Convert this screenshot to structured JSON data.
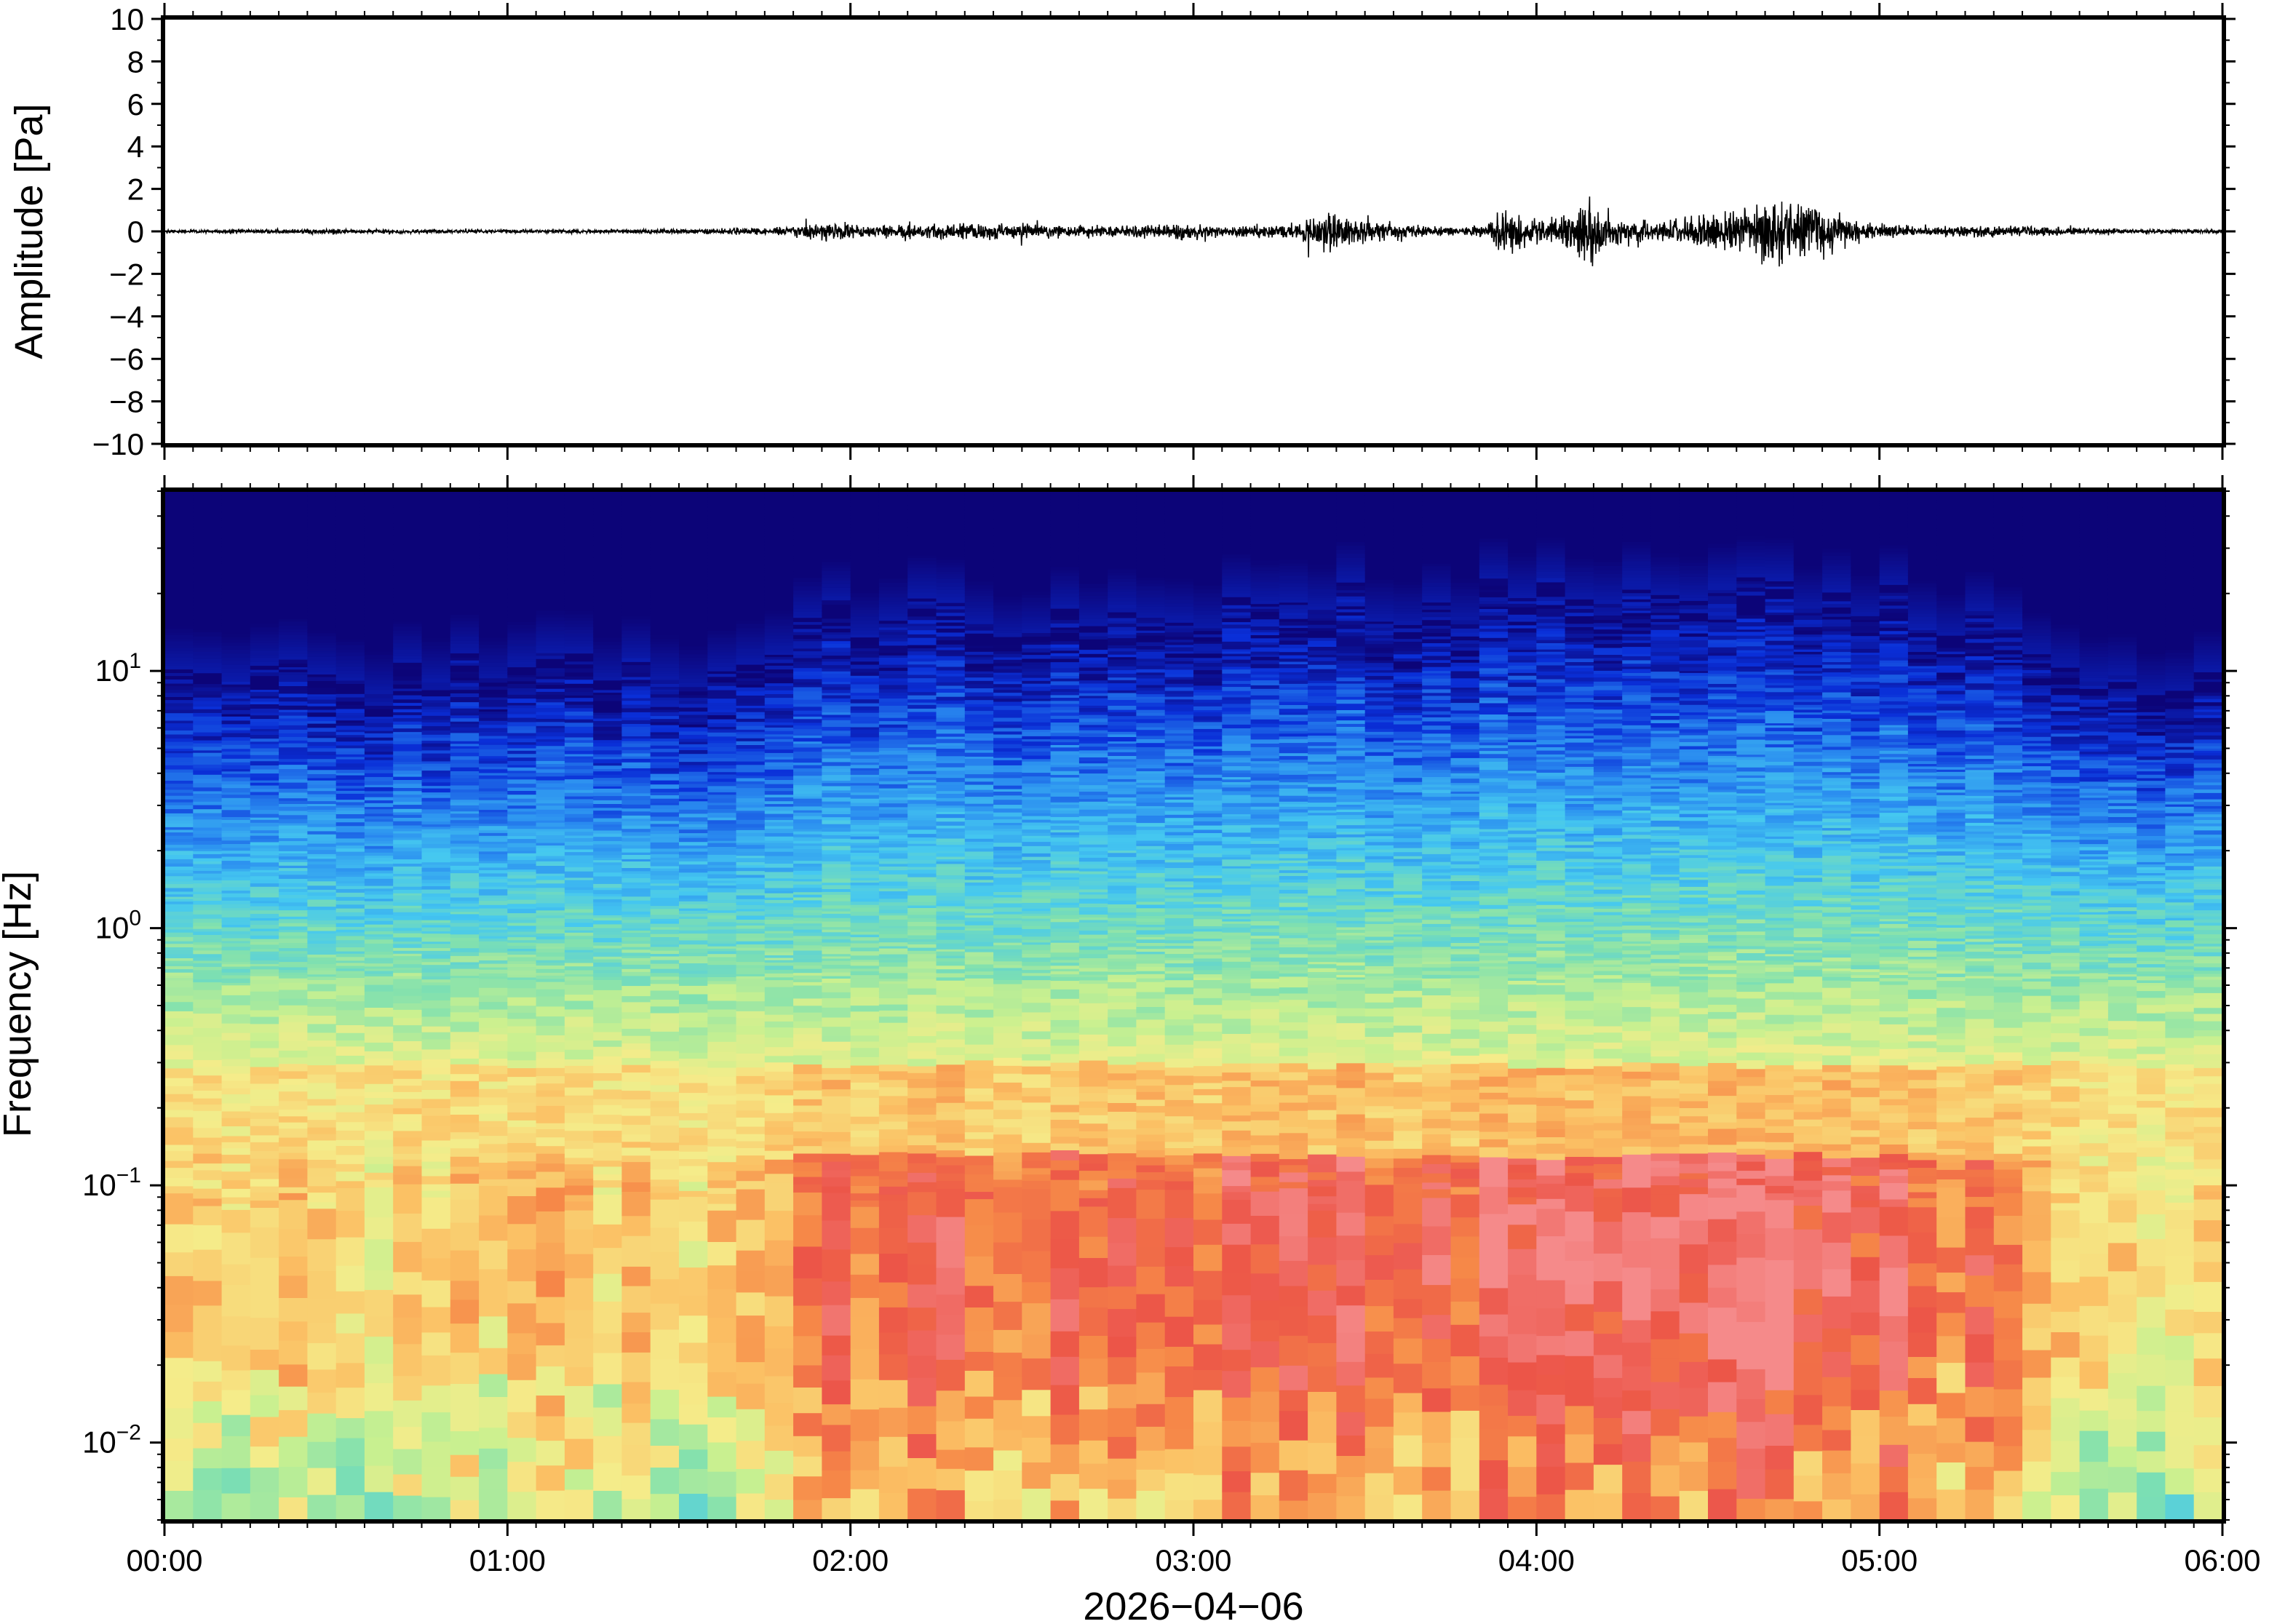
{
  "chart_data": [
    {
      "type": "line",
      "ylabel": "Amplitude [Pa]",
      "ylim": [
        -10,
        10
      ],
      "yticks": [
        10,
        8,
        6,
        4,
        2,
        0,
        -2,
        -4,
        -6,
        -8,
        -10
      ],
      "ytick_labels": [
        "10",
        "8",
        "6",
        "4",
        "2",
        "0",
        "−2",
        "−4",
        "−6",
        "−8",
        "−10"
      ],
      "xlim_hours": [
        0,
        6
      ],
      "grid": false,
      "series": [
        {
          "color": "#000000",
          "envelope_hours": [
            0,
            0.5,
            1.0,
            1.5,
            1.8,
            1.95,
            2.05,
            2.2,
            2.4,
            2.6,
            2.8,
            3.0,
            3.1,
            3.3,
            3.4,
            3.45,
            3.55,
            3.7,
            3.85,
            3.9,
            3.95,
            4.05,
            4.15,
            4.25,
            4.35,
            4.55,
            4.7,
            4.85,
            4.95,
            5.1,
            5.3,
            5.5,
            5.7,
            6.0
          ],
          "envelope_pa": [
            0.1,
            0.15,
            0.12,
            0.15,
            0.25,
            0.6,
            0.35,
            0.4,
            0.55,
            0.4,
            0.4,
            0.55,
            0.35,
            0.45,
            1.3,
            0.9,
            0.6,
            0.3,
            0.35,
            1.3,
            1.1,
            0.8,
            2.0,
            0.7,
            0.6,
            1.3,
            2.3,
            1.5,
            0.6,
            0.35,
            0.35,
            0.3,
            0.15,
            0.12
          ]
        }
      ]
    },
    {
      "type": "heatmap",
      "ylabel": "Frequency [Hz]",
      "xlabel": "2026−04−06",
      "xticks": [
        "00:00",
        "01:00",
        "02:00",
        "03:00",
        "04:00",
        "05:00",
        "06:00"
      ],
      "xlim_hours": [
        0,
        6
      ],
      "yscale": "log",
      "ylim": [
        0.005,
        50
      ],
      "yticks": [
        0.01,
        0.1,
        1,
        10
      ],
      "ytick_labels": [
        {
          "base": "10",
          "exp": "−2"
        },
        {
          "base": "10",
          "exp": "−1"
        },
        {
          "base": "10",
          "exp": "0"
        },
        {
          "base": "10",
          "exp": "1"
        }
      ],
      "colormap": [
        "#0c0478",
        "#0a2fd8",
        "#2a8cf0",
        "#45c8f0",
        "#7fe0b0",
        "#c8f090",
        "#f5ec8a",
        "#fbc064",
        "#f68848",
        "#ec5548",
        "#f58a8a"
      ],
      "activity_hours": [
        0,
        0.3,
        0.6,
        0.9,
        1.2,
        1.5,
        1.8,
        1.95,
        2.2,
        2.5,
        2.8,
        3.1,
        3.4,
        3.6,
        3.9,
        4.15,
        4.4,
        4.7,
        5.0,
        5.3,
        5.5,
        5.75,
        6.0
      ],
      "activity_level": [
        0.15,
        0.25,
        0.2,
        0.25,
        0.3,
        0.25,
        0.45,
        0.75,
        0.7,
        0.7,
        0.8,
        0.75,
        0.95,
        0.55,
        1.0,
        0.95,
        0.8,
        0.95,
        0.8,
        0.65,
        0.55,
        0.2,
        0.1
      ]
    }
  ]
}
